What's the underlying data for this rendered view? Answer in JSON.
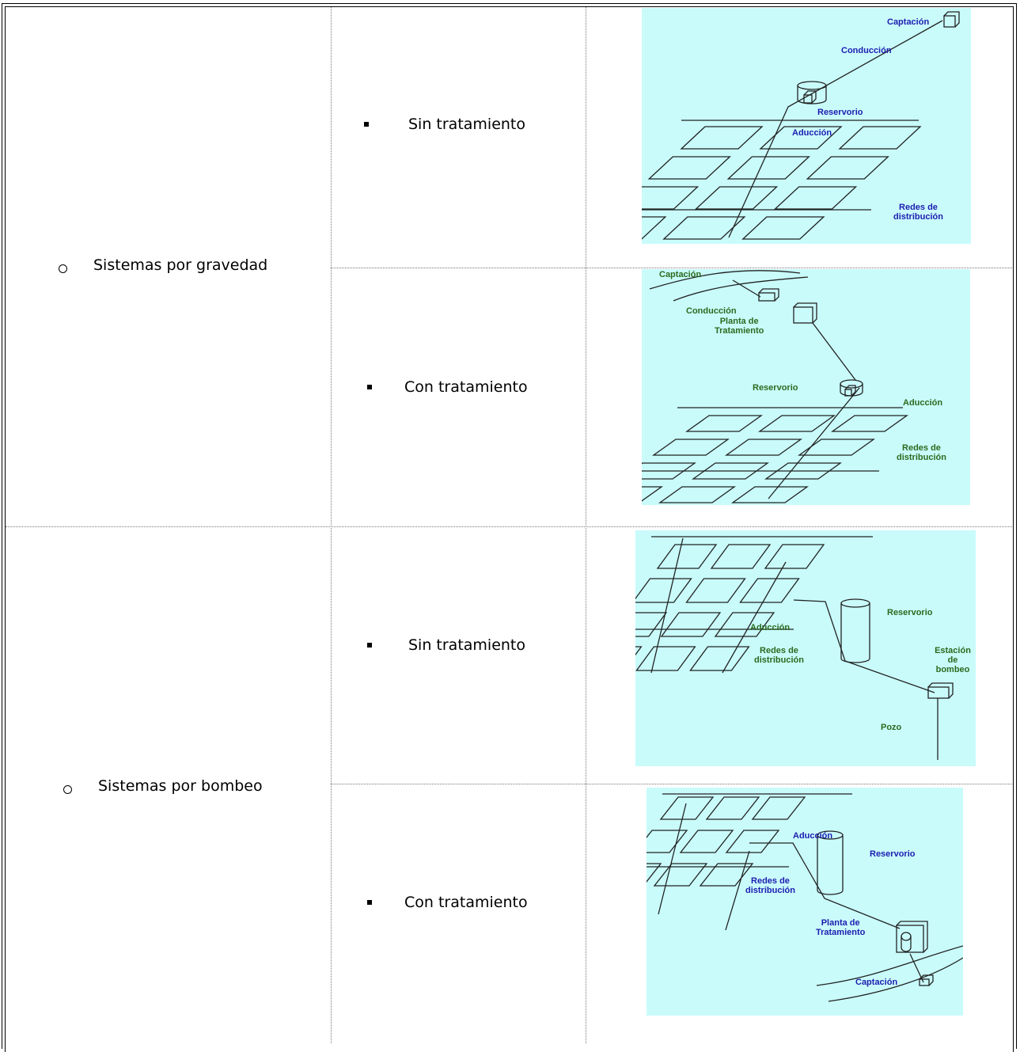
{
  "table": {
    "rows": [
      {
        "system": "Sistemas por gravedad",
        "variants": [
          {
            "label": "Sin tratamiento",
            "diagram_labels": [
              "Captación",
              "Conducción",
              "Reservorio",
              "Aducción",
              "Redes de\ndistribución"
            ]
          },
          {
            "label": "Con tratamiento",
            "diagram_labels": [
              "Captación",
              "Conducción",
              "Planta de\nTratamiento",
              "Reservorio",
              "Aducción",
              "Redes de\ndistribución"
            ]
          }
        ]
      },
      {
        "system": "Sistemas por bombeo",
        "variants": [
          {
            "label": "Sin tratamiento",
            "diagram_labels": [
              "Reservorio",
              "Aducción",
              "Redes de\ndistribución",
              "Estación de\nbombeo",
              "Pozo"
            ]
          },
          {
            "label": "Con tratamiento",
            "diagram_labels": [
              "Aducción",
              "Reservorio",
              "Redes de\ndistribución",
              "Planta de\nTratamiento",
              "Captación"
            ]
          }
        ]
      }
    ]
  }
}
